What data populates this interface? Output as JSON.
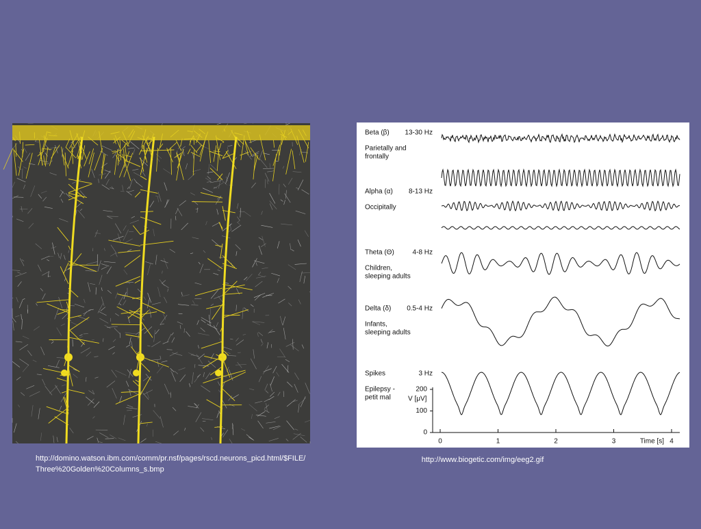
{
  "left_image": {
    "caption": [
      "http://domino.watson.ibm.com/comm/pr.nsf/pages/rscd.neurons_picd.html/$FILE/",
      "Three%20Golden%20Columns_s.bmp"
    ]
  },
  "eeg": {
    "rows": [
      {
        "name": "Beta (β)",
        "band": "13-30 Hz",
        "note": [
          "Parietally and",
          "frontally"
        ]
      },
      {
        "name": "Alpha (α)",
        "band": "8-13 Hz",
        "note": [
          "Occipitally"
        ]
      },
      {
        "name": "Theta (Θ)",
        "band": "4-8 Hz",
        "note": [
          "Children,",
          "sleeping adults"
        ]
      },
      {
        "name": "Delta (δ)",
        "band": "0.5-4 Hz",
        "note": [
          "Infants,",
          "sleeping adults"
        ]
      },
      {
        "name": "Spikes",
        "band": "3 Hz",
        "note": [
          "Epilepsy -",
          "petit mal"
        ]
      }
    ],
    "y_axis": {
      "label": "V [μV]",
      "ticks": [
        200,
        100,
        0
      ]
    },
    "x_axis": {
      "label": "Time [s]",
      "ticks": [
        0,
        1,
        2,
        3,
        4
      ]
    }
  },
  "right_image": {
    "caption": "http://www.biogetic.com/img/eeg2.gif"
  }
}
